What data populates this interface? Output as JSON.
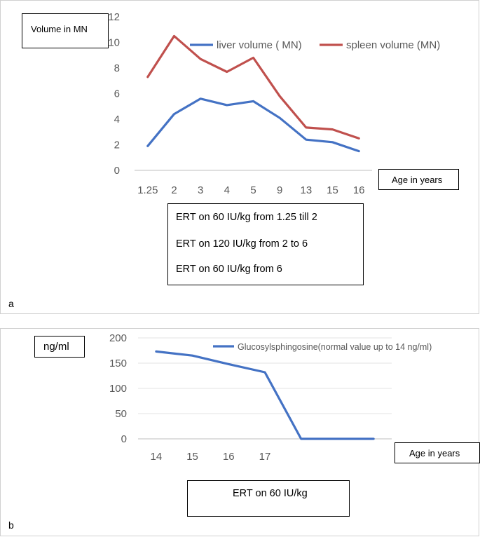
{
  "chart_data": [
    {
      "panel": "a",
      "type": "line",
      "categories": [
        "1.25",
        "2",
        "3",
        "4",
        "5",
        "9",
        "13",
        "15",
        "16"
      ],
      "series": [
        {
          "name": "liver volume ( MN)",
          "color": "#4472C4",
          "values": [
            1.9,
            4.4,
            5.6,
            5.1,
            5.4,
            4.1,
            2.4,
            2.2,
            1.5
          ]
        },
        {
          "name": "spleen volume (MN)",
          "color": "#C0504D",
          "values": [
            7.3,
            10.5,
            8.7,
            7.7,
            8.8,
            5.8,
            3.35,
            3.2,
            2.5
          ]
        }
      ],
      "ylim": [
        0,
        12
      ],
      "yticks": [
        "0",
        "2",
        "4",
        "6",
        "8",
        "10",
        "12"
      ],
      "ylabel": "Volume in MN",
      "xlabel": "Age in years",
      "legend": "top",
      "grid": false
    },
    {
      "panel": "b",
      "type": "line",
      "categories": [
        "14",
        "15",
        "16",
        "17",
        "",
        "",
        ""
      ],
      "series": [
        {
          "name": "Glucosylsphingosine(normal value up to 14 ng/ml)",
          "color": "#4472C4",
          "values": [
            173,
            165,
            148,
            132,
            0,
            0,
            0
          ]
        }
      ],
      "ylim": [
        0,
        200
      ],
      "yticks": [
        "0",
        "50",
        "100",
        "150",
        "200"
      ],
      "ylabel": "ng/ml",
      "xlabel": "Age in years",
      "legend": "top-right",
      "grid": true
    }
  ],
  "panel_a": {
    "letter": "a",
    "ylabel_box": "Volume in MN",
    "xlabel_box": "Age in years",
    "notes": [
      "ERT on 60 IU/kg from 1.25 till 2",
      "ERT on 120 IU/kg from 2 to 6",
      "ERT on 60 IU/kg from 6"
    ]
  },
  "panel_b": {
    "letter": "b",
    "ylabel_box": "ng/ml",
    "xlabel_box": "Age in years",
    "note": "ERT on 60 IU/kg"
  }
}
